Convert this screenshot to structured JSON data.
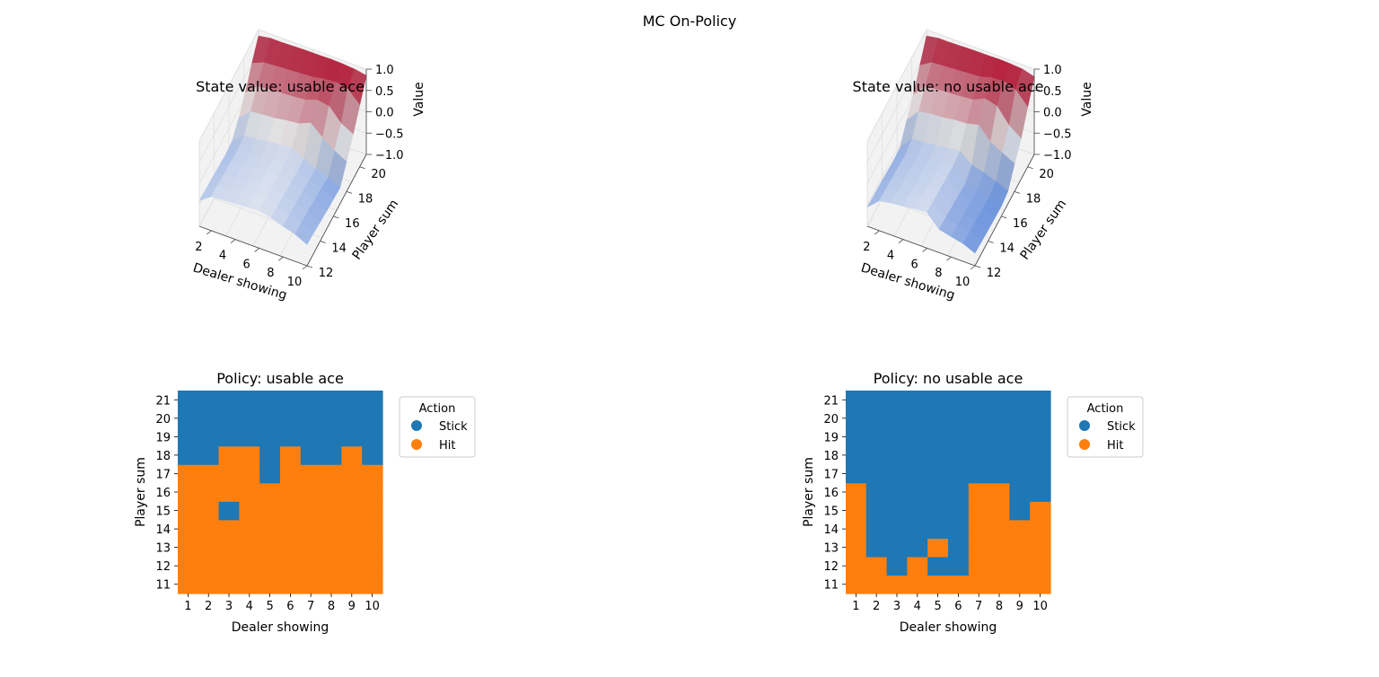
{
  "figure": {
    "title": "MC On-Policy"
  },
  "colors": {
    "stick": "#1f77b4",
    "hit": "#ff7f0e",
    "surface_low": "#3b6fd4",
    "surface_mid": "#f2f2f2",
    "surface_high": "#b40426",
    "pane": "#f2f2f2"
  },
  "chart_data": [
    {
      "id": "value-usable",
      "type": "surface3d",
      "title": "State value: usable ace",
      "xlabel": "Dealer showing",
      "ylabel": "Player sum",
      "zlabel": "Value",
      "x": [
        1,
        2,
        3,
        4,
        5,
        6,
        7,
        8,
        9,
        10
      ],
      "y": [
        12,
        13,
        14,
        15,
        16,
        17,
        18,
        19,
        20,
        21
      ],
      "x_ticks": [
        "2",
        "4",
        "6",
        "8",
        "10"
      ],
      "y_ticks": [
        "12",
        "14",
        "16",
        "18",
        "20"
      ],
      "z_ticks": [
        "−1.0",
        "−0.5",
        "0.0",
        "0.5",
        "1.0"
      ],
      "zlim": [
        -1,
        1
      ],
      "z": [
        [
          -0.4,
          -0.2,
          -0.18,
          -0.16,
          -0.14,
          -0.12,
          -0.18,
          -0.28,
          -0.36,
          -0.5
        ],
        [
          -0.42,
          -0.22,
          -0.2,
          -0.18,
          -0.15,
          -0.13,
          -0.2,
          -0.3,
          -0.38,
          -0.52
        ],
        [
          -0.44,
          -0.24,
          -0.22,
          -0.19,
          -0.16,
          -0.14,
          -0.22,
          -0.32,
          -0.4,
          -0.55
        ],
        [
          -0.46,
          -0.26,
          -0.23,
          -0.2,
          -0.17,
          -0.15,
          -0.24,
          -0.34,
          -0.42,
          -0.58
        ],
        [
          -0.48,
          -0.28,
          -0.25,
          -0.22,
          -0.19,
          -0.17,
          -0.26,
          -0.36,
          -0.45,
          -0.6
        ],
        [
          -0.45,
          -0.22,
          -0.2,
          -0.16,
          -0.12,
          -0.1,
          -0.25,
          -0.38,
          -0.5,
          -0.62
        ],
        [
          -0.2,
          0.05,
          0.08,
          0.1,
          0.15,
          0.18,
          0.3,
          0.05,
          -0.15,
          -0.3
        ],
        [
          0.1,
          0.35,
          0.38,
          0.4,
          0.42,
          0.45,
          0.55,
          0.5,
          0.2,
          0.05
        ],
        [
          0.5,
          0.62,
          0.64,
          0.66,
          0.68,
          0.7,
          0.75,
          0.78,
          0.72,
          0.45
        ],
        [
          0.85,
          0.9,
          0.9,
          0.91,
          0.92,
          0.92,
          0.93,
          0.92,
          0.9,
          0.85
        ]
      ]
    },
    {
      "id": "value-no-usable",
      "type": "surface3d",
      "title": "State value: no usable ace",
      "xlabel": "Dealer showing",
      "ylabel": "Player sum",
      "zlabel": "Value",
      "x": [
        1,
        2,
        3,
        4,
        5,
        6,
        7,
        8,
        9,
        10
      ],
      "y": [
        12,
        13,
        14,
        15,
        16,
        17,
        18,
        19,
        20,
        21
      ],
      "x_ticks": [
        "2",
        "4",
        "6",
        "8",
        "10"
      ],
      "y_ticks": [
        "12",
        "14",
        "16",
        "18",
        "20"
      ],
      "z_ticks": [
        "−1.0",
        "−0.5",
        "0.0",
        "0.5",
        "1.0"
      ],
      "zlim": [
        -1,
        1
      ],
      "z": [
        [
          -0.55,
          -0.3,
          -0.25,
          -0.22,
          -0.18,
          -0.16,
          -0.45,
          -0.52,
          -0.58,
          -0.7
        ],
        [
          -0.57,
          -0.32,
          -0.27,
          -0.24,
          -0.2,
          -0.18,
          -0.48,
          -0.55,
          -0.6,
          -0.72
        ],
        [
          -0.58,
          -0.34,
          -0.29,
          -0.26,
          -0.22,
          -0.2,
          -0.5,
          -0.57,
          -0.62,
          -0.74
        ],
        [
          -0.6,
          -0.36,
          -0.3,
          -0.27,
          -0.23,
          -0.21,
          -0.52,
          -0.58,
          -0.64,
          -0.75
        ],
        [
          -0.62,
          -0.38,
          -0.32,
          -0.29,
          -0.25,
          -0.23,
          -0.55,
          -0.6,
          -0.66,
          -0.76
        ],
        [
          -0.6,
          -0.3,
          -0.28,
          -0.25,
          -0.2,
          -0.18,
          -0.4,
          -0.48,
          -0.58,
          -0.7
        ],
        [
          -0.25,
          0.05,
          0.1,
          0.12,
          0.16,
          0.18,
          0.25,
          -0.05,
          -0.2,
          -0.35
        ],
        [
          0.05,
          0.35,
          0.38,
          0.4,
          0.42,
          0.45,
          0.58,
          0.5,
          0.15,
          -0.05
        ],
        [
          0.45,
          0.62,
          0.64,
          0.66,
          0.68,
          0.7,
          0.78,
          0.8,
          0.7,
          0.4
        ],
        [
          0.85,
          0.9,
          0.9,
          0.91,
          0.92,
          0.92,
          0.93,
          0.92,
          0.9,
          0.82
        ]
      ]
    },
    {
      "id": "policy-usable",
      "type": "heatmap",
      "title": "Policy: usable ace",
      "xlabel": "Dealer showing",
      "ylabel": "Player sum",
      "x": [
        "1",
        "2",
        "3",
        "4",
        "5",
        "6",
        "7",
        "8",
        "9",
        "10"
      ],
      "y": [
        "11",
        "12",
        "13",
        "14",
        "15",
        "16",
        "17",
        "18",
        "19",
        "20",
        "21"
      ],
      "legend": {
        "title": "Action",
        "entries": [
          "Stick",
          "Hit"
        ],
        "placement": "right"
      },
      "stick_from_sum": [
        18,
        18,
        19,
        19,
        17,
        19,
        18,
        18,
        19,
        18
      ],
      "extra_stick_cells": [
        [
          3,
          15
        ]
      ]
    },
    {
      "id": "policy-no-usable",
      "type": "heatmap",
      "title": "Policy: no usable ace",
      "xlabel": "Dealer showing",
      "ylabel": "Player sum",
      "x": [
        "1",
        "2",
        "3",
        "4",
        "5",
        "6",
        "7",
        "8",
        "9",
        "10"
      ],
      "y": [
        "11",
        "12",
        "13",
        "14",
        "15",
        "16",
        "17",
        "18",
        "19",
        "20",
        "21"
      ],
      "legend": {
        "title": "Action",
        "entries": [
          "Stick",
          "Hit"
        ],
        "placement": "right"
      },
      "stick_from_sum": [
        17,
        13,
        12,
        13,
        12,
        12,
        17,
        17,
        15,
        16
      ],
      "extra_hit_cells": [
        [
          5,
          13
        ]
      ]
    }
  ]
}
